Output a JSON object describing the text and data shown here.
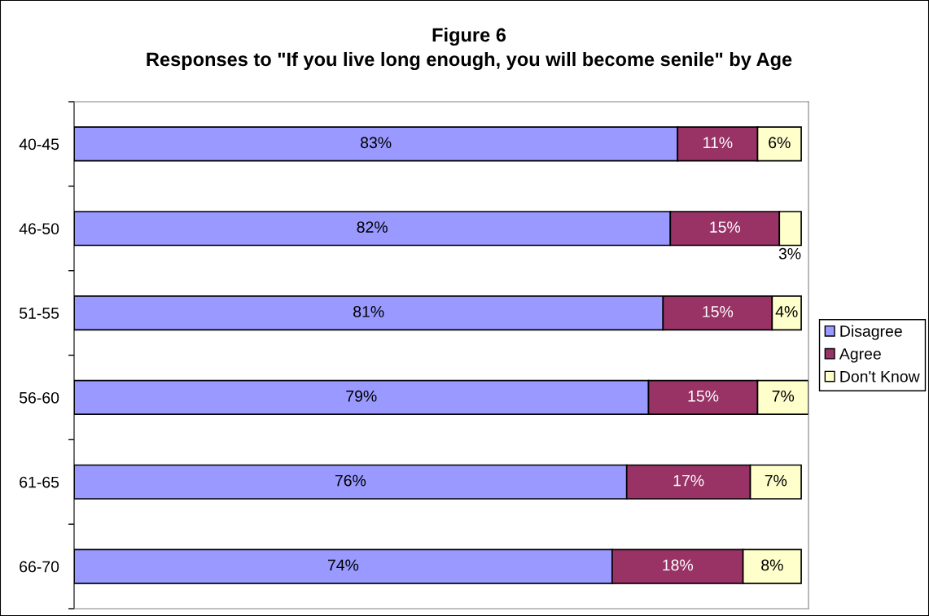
{
  "chart_data": {
    "type": "bar",
    "orientation": "horizontal",
    "stacked": true,
    "title": "Figure 6",
    "subtitle": "Responses to \"If you live long enough, you will become senile\" by Age",
    "categories": [
      "40-45",
      "46-50",
      "51-55",
      "56-60",
      "61-65",
      "66-70"
    ],
    "series": [
      {
        "name": "Disagree",
        "color": "#9999ff",
        "values": [
          83,
          82,
          81,
          79,
          76,
          74
        ],
        "value_labels": [
          "83%",
          "82%",
          "81%",
          "79%",
          "76%",
          "74%"
        ]
      },
      {
        "name": "Agree",
        "color": "#993366",
        "values": [
          11,
          15,
          15,
          15,
          17,
          18
        ],
        "value_labels": [
          "11%",
          "15%",
          "15%",
          "15%",
          "17%",
          "18%"
        ]
      },
      {
        "name": "Don't Know",
        "color": "#ffffcc",
        "values": [
          6,
          3,
          4,
          7,
          7,
          8
        ],
        "value_labels": [
          "6%",
          "3%",
          "4%",
          "7%",
          "7%",
          "8%"
        ]
      }
    ],
    "legend": "right",
    "tick_labels": "y"
  }
}
